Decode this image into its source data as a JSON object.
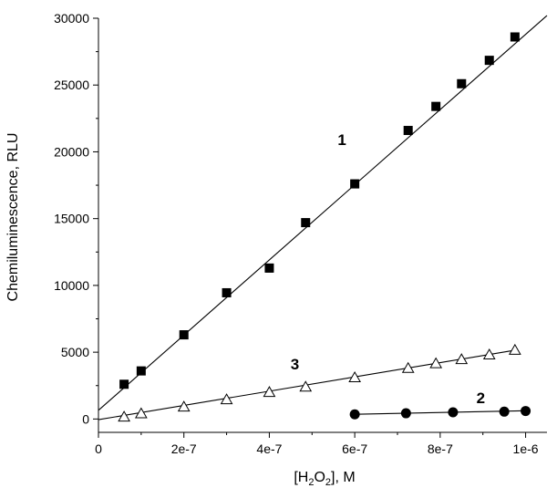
{
  "chart_data": {
    "type": "scatter",
    "xlabel": "[H2O2], M",
    "xlabel_parts": {
      "open": "[H",
      "sub1": "2",
      "mid": "O",
      "sub2": "2",
      "close": "], M"
    },
    "ylabel": "Chemiluminescence, RLU",
    "xlim": [
      0,
      1.05e-06
    ],
    "ylim": [
      -1000,
      30000
    ],
    "x_ticks": [
      {
        "value": 0,
        "label": "0"
      },
      {
        "value": 2e-07,
        "label": "2e-7"
      },
      {
        "value": 4e-07,
        "label": "4e-7"
      },
      {
        "value": 6e-07,
        "label": "6e-7"
      },
      {
        "value": 8e-07,
        "label": "8e-7"
      },
      {
        "value": 1e-06,
        "label": "1e-6"
      }
    ],
    "y_ticks": [
      {
        "value": 0,
        "label": "0"
      },
      {
        "value": 5000,
        "label": "5000"
      },
      {
        "value": 10000,
        "label": "10000"
      },
      {
        "value": 15000,
        "label": "15000"
      },
      {
        "value": 20000,
        "label": "20000"
      },
      {
        "value": 25000,
        "label": "25000"
      },
      {
        "value": 30000,
        "label": "30000"
      }
    ],
    "grid": false,
    "legend": "none",
    "series": [
      {
        "label": "1",
        "marker": "filled-square",
        "color": "#000000",
        "x": [
          6e-08,
          1e-07,
          2e-07,
          3e-07,
          4e-07,
          4.85e-07,
          6e-07,
          7.25e-07,
          7.9e-07,
          8.5e-07,
          9.15e-07,
          9.75e-07
        ],
        "y": [
          2600,
          3600,
          6300,
          9450,
          11300,
          14700,
          17600,
          21600,
          23400,
          25100,
          26850,
          28600
        ],
        "error": [
          250,
          250,
          300,
          0,
          300,
          0,
          300,
          0,
          0,
          0,
          0,
          0
        ],
        "fit": {
          "x": [
            0,
            1.05e-06
          ],
          "y": [
            650,
            30200
          ]
        }
      },
      {
        "label": "2",
        "marker": "filled-circle",
        "color": "#000000",
        "x": [
          6e-07,
          7.2e-07,
          8.3e-07,
          9.5e-07,
          1e-06
        ],
        "y": [
          350,
          430,
          500,
          550,
          600
        ],
        "error": [
          0,
          0,
          0,
          0,
          0
        ],
        "fit": {
          "x": [
            6e-07,
            1e-06
          ],
          "y": [
            350,
            620
          ]
        }
      },
      {
        "label": "3",
        "marker": "open-triangle",
        "color": "#000000",
        "x": [
          6e-08,
          1e-07,
          2e-07,
          3e-07,
          4e-07,
          4.85e-07,
          6e-07,
          7.25e-07,
          7.9e-07,
          8.5e-07,
          9.15e-07,
          9.75e-07
        ],
        "y": [
          150,
          400,
          900,
          1450,
          2000,
          2400,
          3100,
          3800,
          4150,
          4450,
          4800,
          5150
        ],
        "error": [
          0,
          0,
          0,
          0,
          0,
          0,
          0,
          0,
          0,
          0,
          0,
          0
        ],
        "fit": {
          "x": [
            0,
            9.75e-07
          ],
          "y": [
            -50,
            5150
          ]
        }
      }
    ],
    "series_label_anchor": [
      {
        "x": 5.7e-07,
        "y": 20500
      },
      {
        "x": 8.95e-07,
        "y": 1200
      },
      {
        "x": 4.6e-07,
        "y": 3700
      }
    ]
  }
}
